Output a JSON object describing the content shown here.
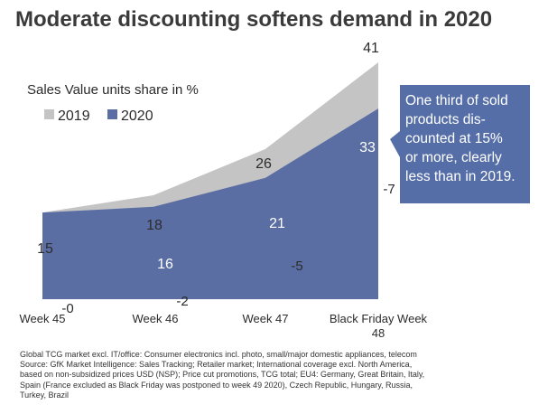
{
  "title": "Moderate discounting softens demand in 2020",
  "footnote": "Global TCG market excl. IT/office: Consumer electronics incl. photo, small/major domestic appliances, telecom\nSource: GfK Market Intelligence: Sales Tracking; Retailer market; International coverage excl. North America,\nbased on non-subsidized prices USD (NSP); Price cut promotions, TCG total; EU4: Germany, Great Britain, Italy,\nSpain (France excluded as Black Friday was postponed to week 49 2020), Czech Republic, Hungary, Russia,\nTurkey, Brazil",
  "callout": {
    "text": "One third of sold\nproducts dis-\ncounted at 15%\nor more, clearly\nless than in 2019.",
    "color": "#556ea7"
  },
  "chart_data": {
    "type": "area",
    "subtitle": "Sales Value units share in %",
    "categories": [
      "Week 45",
      "Week 46",
      "Week 47",
      "Black Friday Week 48"
    ],
    "series": [
      {
        "name": "2019",
        "values": [
          15,
          18,
          26,
          41
        ],
        "color": "#c4c4c4"
      },
      {
        "name": "2020",
        "values": [
          15,
          16,
          21,
          33
        ],
        "color": "#5a6ea3"
      }
    ],
    "differences": [
      "-0",
      "-2",
      "-5",
      "-7"
    ],
    "ylim": [
      0,
      41
    ],
    "grid": false,
    "legend": "top-left"
  }
}
